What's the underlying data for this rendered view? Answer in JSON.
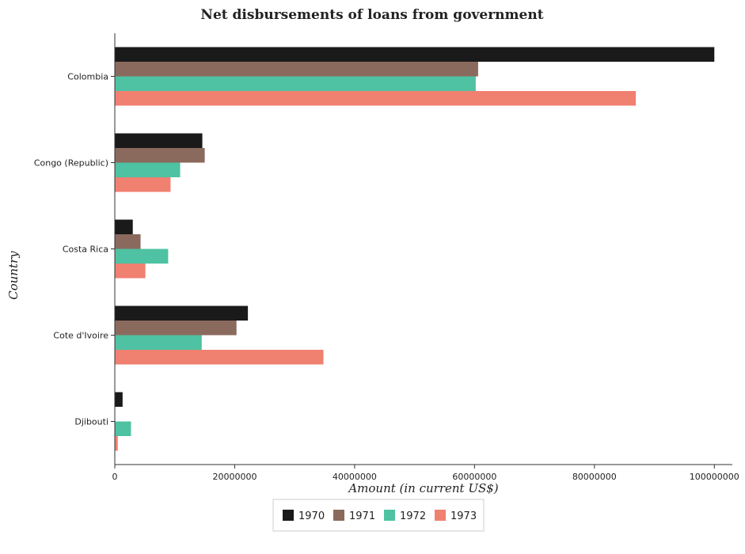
{
  "chart_data": {
    "type": "bar",
    "orientation": "horizontal",
    "title": "Net disbursements of loans from government",
    "xlabel": "Amount (in current US$)",
    "ylabel": "Country",
    "xlim": [
      0,
      103000000
    ],
    "xticks": [
      0,
      20000000,
      40000000,
      60000000,
      80000000,
      100000000
    ],
    "xtick_labels": [
      "0",
      "20000000",
      "40000000",
      "60000000",
      "80000000",
      "100000000"
    ],
    "categories": [
      "Colombia",
      "Congo (Republic)",
      "Costa Rica",
      "Cote d'Ivoire",
      "Djibouti"
    ],
    "series": [
      {
        "name": "1970",
        "color": "#1a1a1a",
        "values": [
          100000000,
          14600000,
          3000000,
          22200000,
          1300000
        ]
      },
      {
        "name": "1971",
        "color": "#8b6a5e",
        "values": [
          60600000,
          15000000,
          4300000,
          20300000,
          0
        ]
      },
      {
        "name": "1972",
        "color": "#4ec2a2",
        "values": [
          60200000,
          10900000,
          8900000,
          14500000,
          2700000
        ]
      },
      {
        "name": "1973",
        "color": "#f08070",
        "values": [
          86900000,
          9300000,
          5100000,
          34800000,
          500000
        ]
      }
    ],
    "grid": false,
    "legend": "bottom-center"
  }
}
